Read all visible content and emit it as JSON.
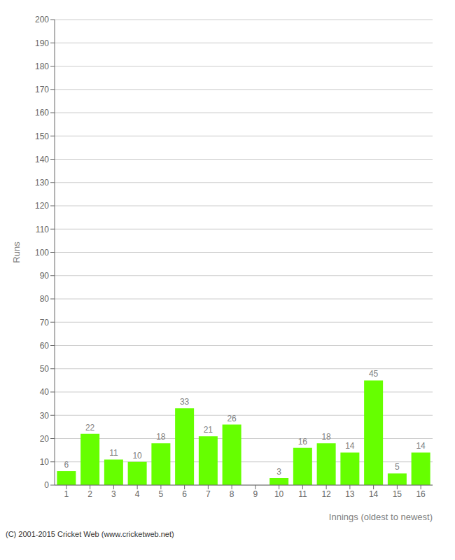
{
  "chart_data": {
    "type": "bar",
    "xlabel": "Innings (oldest to newest)",
    "ylabel": "Runs",
    "categories": [
      "1",
      "2",
      "3",
      "4",
      "5",
      "6",
      "7",
      "8",
      "9",
      "10",
      "11",
      "12",
      "13",
      "14",
      "15",
      "16"
    ],
    "values": [
      6,
      22,
      11,
      10,
      18,
      33,
      21,
      26,
      0,
      3,
      16,
      18,
      14,
      45,
      5,
      14
    ],
    "color": "#66ff00",
    "ylim": [
      0,
      200
    ],
    "yticks": [
      0,
      10,
      20,
      30,
      40,
      50,
      60,
      70,
      80,
      90,
      100,
      110,
      120,
      130,
      140,
      150,
      160,
      170,
      180,
      190,
      200
    ],
    "grid": true,
    "data_labels": true,
    "annotations": [
      "(C) 2001-2015 Cricket Web (www.cricketweb.net)"
    ]
  }
}
